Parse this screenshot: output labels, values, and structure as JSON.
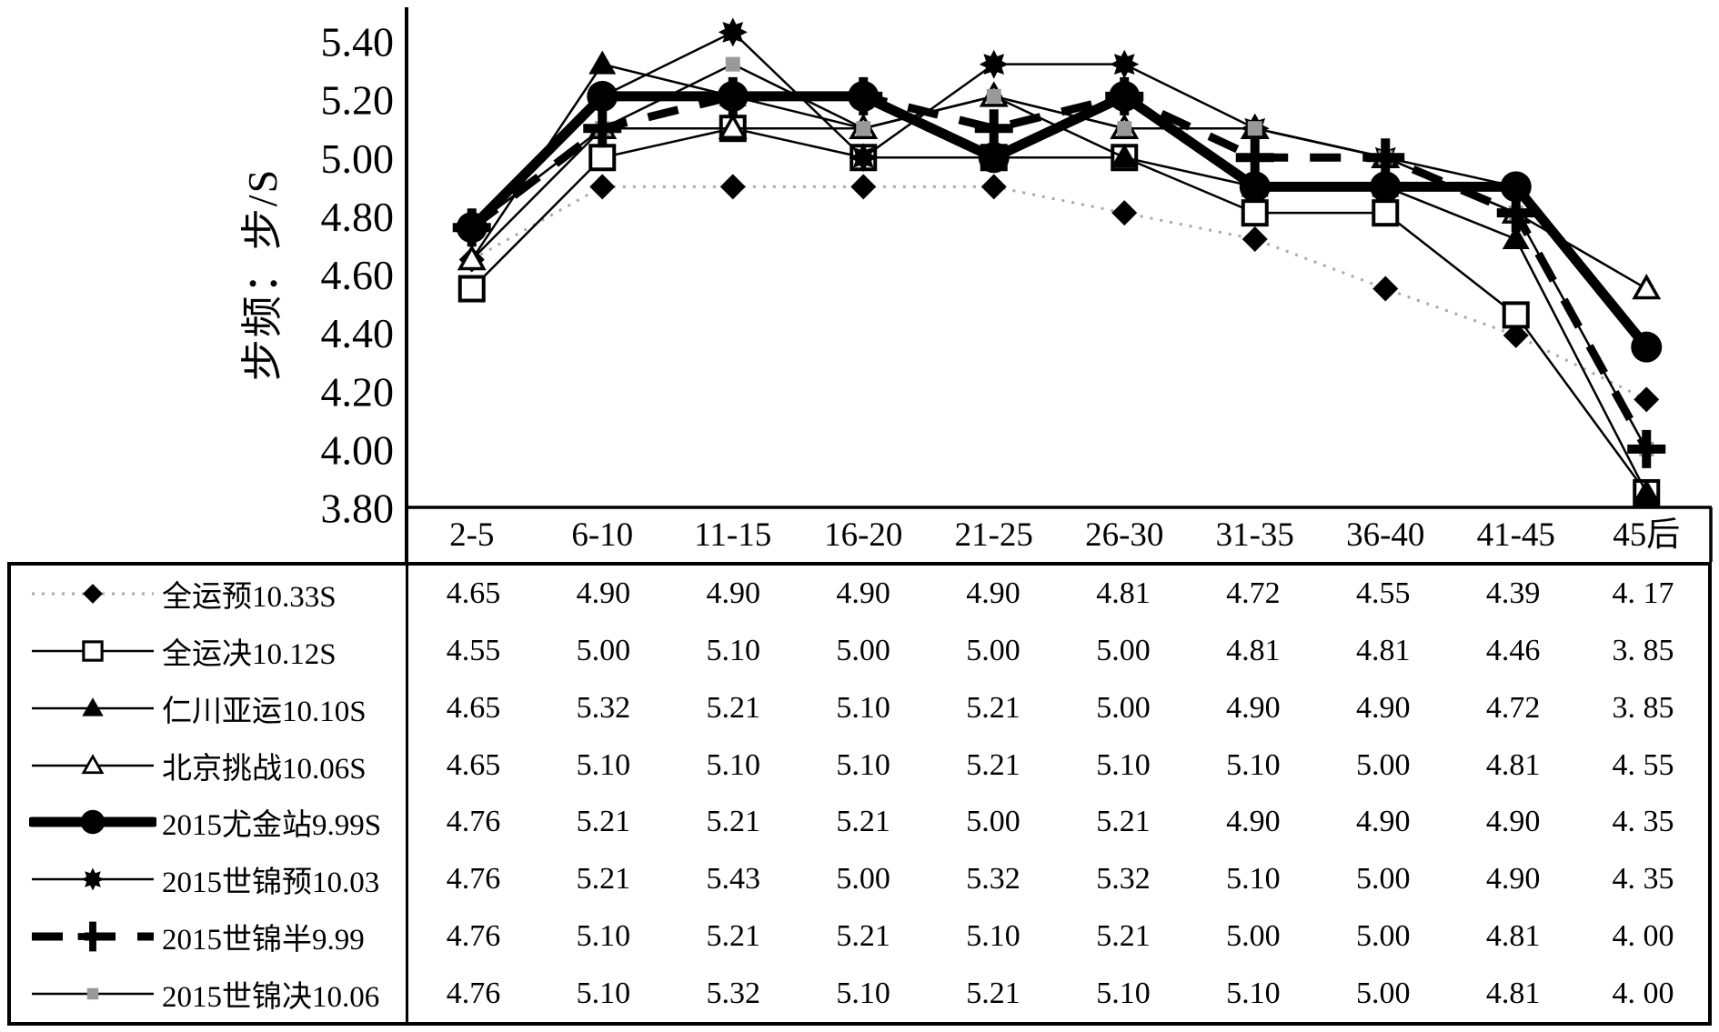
{
  "page": {
    "background": "#ffffff"
  },
  "colors": {
    "black": "#000000",
    "gray_marker": "#999999",
    "dotted_line": "#aaaaaa"
  },
  "chart_data": {
    "type": "line",
    "title": "",
    "xlabel": "",
    "ylabel": "步频：步/S",
    "ylim": [
      3.8,
      5.45
    ],
    "y_ticks": [
      "5.40",
      "5.20",
      "5.00",
      "4.80",
      "4.60",
      "4.40",
      "4.20",
      "4.00",
      "3.80"
    ],
    "categories": [
      "2-5",
      "6-10",
      "11-15",
      "16-20",
      "21-25",
      "26-30",
      "31-35",
      "36-40",
      "41-45",
      "45后"
    ],
    "grid": false,
    "legend_position": "left column of bottom data table",
    "series": [
      {
        "name": "全运预10.33S",
        "marker": "diamond-filled",
        "line": "dotted-thin-gray",
        "values": [
          4.65,
          4.9,
          4.9,
          4.9,
          4.9,
          4.81,
          4.72,
          4.55,
          4.39,
          4.17
        ],
        "cells": [
          "4.65",
          "4.90",
          "4.90",
          "4.90",
          "4.90",
          "4.81",
          "4.72",
          "4.55",
          "4.39",
          "4. 17"
        ]
      },
      {
        "name": "全运决10.12S",
        "marker": "square-open",
        "line": "solid-thin",
        "values": [
          4.55,
          5.0,
          5.1,
          5.0,
          5.0,
          5.0,
          4.81,
          4.81,
          4.46,
          3.85
        ],
        "cells": [
          "4.55",
          "5.00",
          "5.10",
          "5.00",
          "5.00",
          "5.00",
          "4.81",
          "4.81",
          "4.46",
          "3. 85"
        ]
      },
      {
        "name": "仁川亚运10.10S",
        "marker": "triangle-filled",
        "line": "solid-thin",
        "values": [
          4.65,
          5.32,
          5.21,
          5.1,
          5.21,
          5.0,
          4.9,
          4.9,
          4.72,
          3.85
        ],
        "cells": [
          "4.65",
          "5.32",
          "5.21",
          "5.10",
          "5.21",
          "5.00",
          "4.90",
          "4.90",
          "4.72",
          "3. 85"
        ]
      },
      {
        "name": "北京挑战10.06S",
        "marker": "triangle-open",
        "line": "solid-thin",
        "values": [
          4.65,
          5.1,
          5.1,
          5.1,
          5.21,
          5.1,
          5.1,
          5.0,
          4.81,
          4.55
        ],
        "cells": [
          "4.65",
          "5.10",
          "5.10",
          "5.10",
          "5.21",
          "5.10",
          "5.10",
          "5.00",
          "4.81",
          "4. 55"
        ]
      },
      {
        "name": "2015尤金站9.99S",
        "marker": "circle-filled",
        "line": "solid-thick",
        "values": [
          4.76,
          5.21,
          5.21,
          5.21,
          5.0,
          5.21,
          4.9,
          4.9,
          4.9,
          4.35
        ],
        "cells": [
          "4.76",
          "5.21",
          "5.21",
          "5.21",
          "5.00",
          "5.21",
          "4.90",
          "4.90",
          "4.90",
          "4. 35"
        ]
      },
      {
        "name": "2015世锦预10.03",
        "marker": "star8",
        "line": "solid-thin",
        "values": [
          4.76,
          5.21,
          5.43,
          5.0,
          5.32,
          5.32,
          5.1,
          5.0,
          4.9,
          4.35
        ],
        "cells": [
          "4.76",
          "5.21",
          "5.43",
          "5.00",
          "5.32",
          "5.32",
          "5.10",
          "5.00",
          "4.90",
          "4. 35"
        ]
      },
      {
        "name": "2015世锦半9.99",
        "marker": "plus",
        "line": "dashed-thick",
        "values": [
          4.76,
          5.1,
          5.21,
          5.21,
          5.1,
          5.21,
          5.0,
          5.0,
          4.81,
          4.0
        ],
        "cells": [
          "4.76",
          "5.10",
          "5.21",
          "5.21",
          "5.10",
          "5.21",
          "5.00",
          "5.00",
          "4.81",
          "4. 00"
        ]
      },
      {
        "name": "2015世锦决10.06",
        "marker": "square-small-gray",
        "line": "solid-thin",
        "values": [
          4.76,
          5.1,
          5.32,
          5.1,
          5.21,
          5.1,
          5.1,
          5.0,
          4.81,
          4.0
        ],
        "cells": [
          "4.76",
          "5.10",
          "5.32",
          "5.10",
          "5.21",
          "5.10",
          "5.10",
          "5.00",
          "4.81",
          "4. 00"
        ]
      }
    ]
  }
}
